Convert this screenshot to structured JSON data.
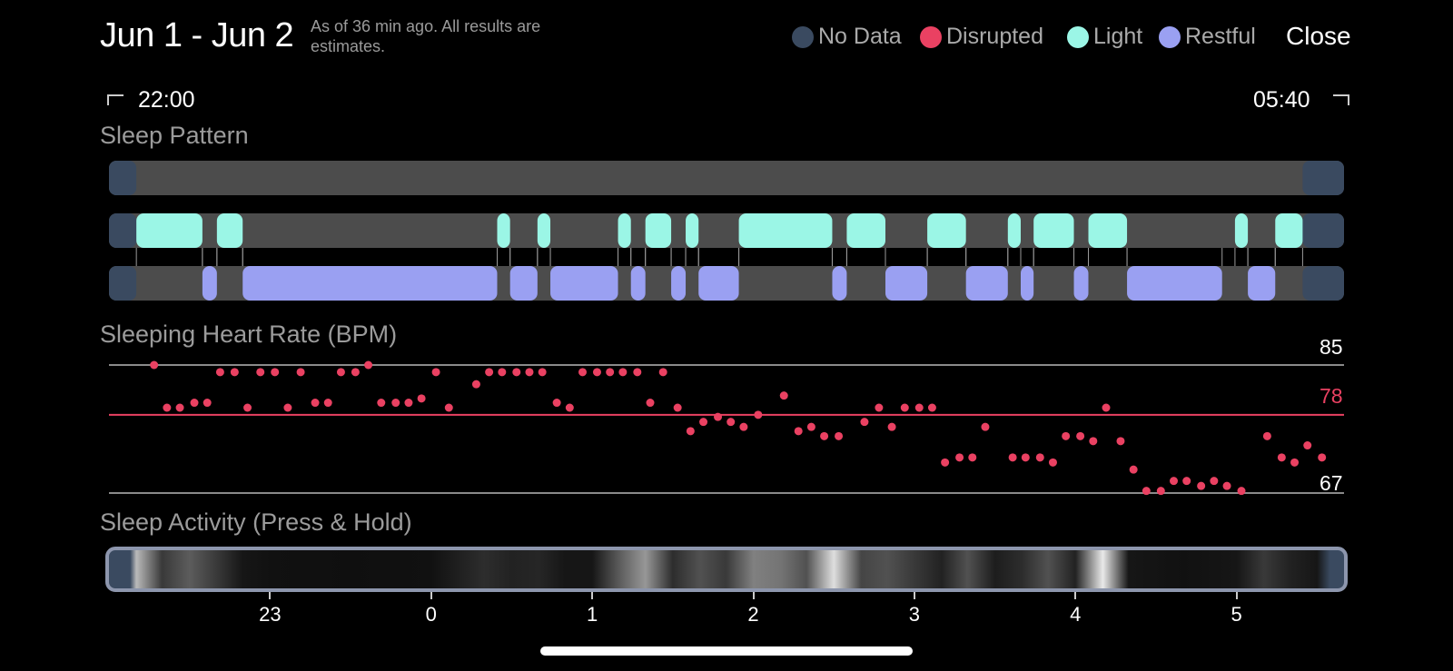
{
  "header": {
    "title": "Jun 1 - Jun 2",
    "note": "As of 36 min ago. All results are estimates.",
    "close_label": "Close"
  },
  "legend": [
    {
      "label": "No Data",
      "color": "#3a4a60"
    },
    {
      "label": "Disrupted",
      "color": "#ea4162"
    },
    {
      "label": "Light",
      "color": "#9bf6e6"
    },
    {
      "label": "Restful",
      "color": "#9aa0f2"
    }
  ],
  "time_range": {
    "start": "22:00",
    "end": "05:40"
  },
  "sleep_pattern": {
    "label": "Sleep Pattern",
    "axis_start_hours": -2.0,
    "axis_end_hours": 5.667,
    "no_data_color": "#3a4a60",
    "light_segments": [
      [
        -1.83,
        -1.42
      ],
      [
        -1.33,
        -1.17
      ],
      [
        0.41,
        0.49
      ],
      [
        0.66,
        0.74
      ],
      [
        1.16,
        1.24
      ],
      [
        1.33,
        1.49
      ],
      [
        1.58,
        1.66
      ],
      [
        1.91,
        2.49
      ],
      [
        2.58,
        2.82
      ],
      [
        3.08,
        3.32
      ],
      [
        3.58,
        3.66
      ],
      [
        3.74,
        3.99
      ],
      [
        4.08,
        4.32
      ],
      [
        4.99,
        5.07
      ],
      [
        5.24,
        5.41
      ]
    ],
    "restful_segments": [
      [
        -1.42,
        -1.33
      ],
      [
        -1.17,
        0.41
      ],
      [
        0.49,
        0.66
      ],
      [
        0.74,
        1.16
      ],
      [
        1.24,
        1.33
      ],
      [
        1.49,
        1.58
      ],
      [
        1.66,
        1.91
      ],
      [
        2.49,
        2.58
      ],
      [
        2.82,
        3.08
      ],
      [
        3.32,
        3.58
      ],
      [
        3.66,
        3.74
      ],
      [
        3.99,
        4.08
      ],
      [
        4.32,
        4.91
      ],
      [
        5.07,
        5.24
      ]
    ]
  },
  "heart_rate": {
    "label": "Sleeping Heart Rate (BPM)",
    "max_label": "85",
    "avg_label": "78",
    "min_label": "67",
    "max": 85,
    "avg": 78,
    "min": 67,
    "points": [
      [
        -1.72,
        85
      ],
      [
        -1.64,
        79
      ],
      [
        -1.56,
        79
      ],
      [
        -1.47,
        79.7
      ],
      [
        -1.39,
        79.7
      ],
      [
        -1.31,
        84
      ],
      [
        -1.22,
        84
      ],
      [
        -1.14,
        79
      ],
      [
        -1.06,
        84
      ],
      [
        -0.97,
        84
      ],
      [
        -0.89,
        79
      ],
      [
        -0.81,
        84
      ],
      [
        -0.72,
        79.7
      ],
      [
        -0.64,
        79.7
      ],
      [
        -0.56,
        84
      ],
      [
        -0.47,
        84
      ],
      [
        -0.39,
        85
      ],
      [
        -0.31,
        79.7
      ],
      [
        -0.22,
        79.7
      ],
      [
        -0.14,
        79.7
      ],
      [
        -0.06,
        80.3
      ],
      [
        0.03,
        84
      ],
      [
        0.11,
        79
      ],
      [
        0.28,
        82.3
      ],
      [
        0.36,
        84
      ],
      [
        0.44,
        84
      ],
      [
        0.53,
        84
      ],
      [
        0.61,
        84
      ],
      [
        0.69,
        84
      ],
      [
        0.78,
        79.7
      ],
      [
        0.86,
        79
      ],
      [
        0.94,
        84
      ],
      [
        1.03,
        84
      ],
      [
        1.11,
        84
      ],
      [
        1.19,
        84
      ],
      [
        1.28,
        84
      ],
      [
        1.36,
        79.7
      ],
      [
        1.44,
        84
      ],
      [
        1.53,
        79
      ],
      [
        1.61,
        75.7
      ],
      [
        1.69,
        77
      ],
      [
        1.78,
        77.7
      ],
      [
        1.86,
        77
      ],
      [
        1.94,
        76.3
      ],
      [
        2.03,
        78
      ],
      [
        2.19,
        80.7
      ],
      [
        2.28,
        75.7
      ],
      [
        2.36,
        76.3
      ],
      [
        2.44,
        75
      ],
      [
        2.53,
        75
      ],
      [
        2.69,
        77
      ],
      [
        2.78,
        79
      ],
      [
        2.86,
        76.3
      ],
      [
        2.94,
        79
      ],
      [
        3.03,
        79
      ],
      [
        3.11,
        79
      ],
      [
        3.19,
        71.3
      ],
      [
        3.28,
        72
      ],
      [
        3.36,
        72
      ],
      [
        3.44,
        76.3
      ],
      [
        3.61,
        72
      ],
      [
        3.69,
        72
      ],
      [
        3.78,
        72
      ],
      [
        3.86,
        71.3
      ],
      [
        3.94,
        75
      ],
      [
        4.03,
        75
      ],
      [
        4.11,
        74.3
      ],
      [
        4.19,
        79
      ],
      [
        4.28,
        74.3
      ],
      [
        4.36,
        70.3
      ],
      [
        4.44,
        67.3
      ],
      [
        4.53,
        67.3
      ],
      [
        4.61,
        68.7
      ],
      [
        4.69,
        68.7
      ],
      [
        4.78,
        68
      ],
      [
        4.86,
        68.7
      ],
      [
        4.94,
        68
      ],
      [
        5.03,
        67.3
      ],
      [
        5.19,
        75
      ],
      [
        5.28,
        72
      ],
      [
        5.36,
        71.3
      ],
      [
        5.44,
        73.7
      ],
      [
        5.53,
        72
      ]
    ]
  },
  "activity": {
    "label": "Sleep Activity (Press & Hold)",
    "intensity": [
      [
        -1.83,
        0.75
      ],
      [
        -1.67,
        0.2
      ],
      [
        -1.5,
        0.35
      ],
      [
        -1.33,
        0.2
      ],
      [
        -1.17,
        0.05
      ],
      [
        -1.0,
        0.03
      ],
      [
        -0.5,
        0.02
      ],
      [
        0.0,
        0.03
      ],
      [
        0.33,
        0.15
      ],
      [
        0.5,
        0.1
      ],
      [
        0.67,
        0.12
      ],
      [
        0.83,
        0.05
      ],
      [
        1.0,
        0.05
      ],
      [
        1.17,
        0.35
      ],
      [
        1.33,
        0.6
      ],
      [
        1.5,
        0.15
      ],
      [
        1.67,
        0.3
      ],
      [
        1.83,
        0.2
      ],
      [
        2.0,
        0.5
      ],
      [
        2.17,
        0.45
      ],
      [
        2.33,
        0.3
      ],
      [
        2.5,
        0.9
      ],
      [
        2.67,
        0.25
      ],
      [
        2.83,
        0.3
      ],
      [
        3.0,
        0.2
      ],
      [
        3.17,
        0.1
      ],
      [
        3.33,
        0.3
      ],
      [
        3.5,
        0.08
      ],
      [
        3.67,
        0.15
      ],
      [
        3.83,
        0.3
      ],
      [
        4.0,
        0.1
      ],
      [
        4.17,
        0.95
      ],
      [
        4.33,
        0.05
      ],
      [
        4.67,
        0.03
      ],
      [
        5.0,
        0.05
      ],
      [
        5.17,
        0.2
      ],
      [
        5.33,
        0.1
      ],
      [
        5.5,
        0.05
      ]
    ],
    "ticks": [
      {
        "hour": -1,
        "label": "23"
      },
      {
        "hour": 0,
        "label": "0"
      },
      {
        "hour": 1,
        "label": "1"
      },
      {
        "hour": 2,
        "label": "2"
      },
      {
        "hour": 3,
        "label": "3"
      },
      {
        "hour": 4,
        "label": "4"
      },
      {
        "hour": 5,
        "label": "5"
      }
    ]
  }
}
